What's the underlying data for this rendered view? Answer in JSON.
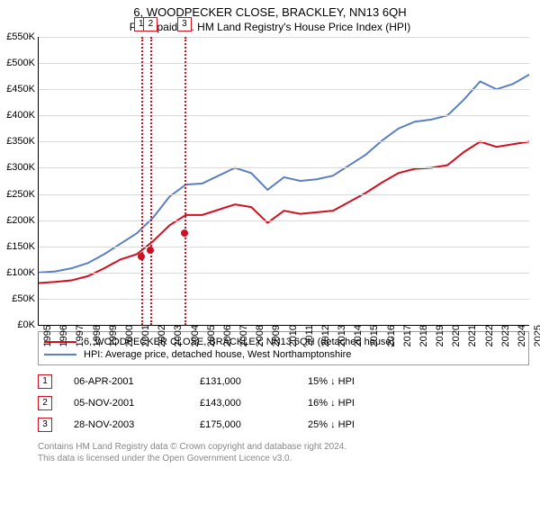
{
  "title": "6, WOODPECKER CLOSE, BRACKLEY, NN13 6QH",
  "subtitle": "Price paid vs. HM Land Registry's House Price Index (HPI)",
  "chart": {
    "type": "line",
    "background_color": "#ffffff",
    "grid_color": "#d9d9d9",
    "axis_color": "#000000",
    "ylabel_prefix": "£",
    "ylabel_suffix": "K",
    "ylim": [
      0,
      550
    ],
    "ytick_step": 50,
    "xlim": [
      1995,
      2025
    ],
    "xtick_step": 1,
    "label_fontsize": 11,
    "series": [
      {
        "id": "property",
        "label": "6, WOODPECKER CLOSE, BRACKLEY, NN13 6QH (detached house)",
        "color": "#cf1020",
        "line_width": 2,
        "points": [
          [
            1995,
            80
          ],
          [
            1996,
            82
          ],
          [
            1997,
            85
          ],
          [
            1998,
            93
          ],
          [
            1999,
            108
          ],
          [
            2000,
            125
          ],
          [
            2001,
            135
          ],
          [
            2002,
            160
          ],
          [
            2003,
            190
          ],
          [
            2004,
            210
          ],
          [
            2005,
            210
          ],
          [
            2006,
            220
          ],
          [
            2007,
            230
          ],
          [
            2008,
            225
          ],
          [
            2009,
            195
          ],
          [
            2010,
            218
          ],
          [
            2011,
            212
          ],
          [
            2012,
            215
          ],
          [
            2013,
            218
          ],
          [
            2014,
            235
          ],
          [
            2015,
            252
          ],
          [
            2016,
            272
          ],
          [
            2017,
            290
          ],
          [
            2018,
            298
          ],
          [
            2019,
            300
          ],
          [
            2020,
            305
          ],
          [
            2021,
            330
          ],
          [
            2022,
            350
          ],
          [
            2023,
            340
          ],
          [
            2024,
            345
          ],
          [
            2025,
            350
          ]
        ]
      },
      {
        "id": "hpi",
        "label": "HPI: Average price, detached house, West Northamptonshire",
        "color": "#5b7fbf",
        "line_width": 2,
        "points": [
          [
            1995,
            100
          ],
          [
            1996,
            102
          ],
          [
            1997,
            108
          ],
          [
            1998,
            118
          ],
          [
            1999,
            135
          ],
          [
            2000,
            155
          ],
          [
            2001,
            175
          ],
          [
            2002,
            205
          ],
          [
            2003,
            245
          ],
          [
            2004,
            268
          ],
          [
            2005,
            270
          ],
          [
            2006,
            285
          ],
          [
            2007,
            300
          ],
          [
            2008,
            290
          ],
          [
            2009,
            258
          ],
          [
            2010,
            282
          ],
          [
            2011,
            275
          ],
          [
            2012,
            278
          ],
          [
            2013,
            285
          ],
          [
            2014,
            305
          ],
          [
            2015,
            325
          ],
          [
            2016,
            352
          ],
          [
            2017,
            375
          ],
          [
            2018,
            388
          ],
          [
            2019,
            392
          ],
          [
            2020,
            400
          ],
          [
            2021,
            430
          ],
          [
            2022,
            465
          ],
          [
            2023,
            450
          ],
          [
            2024,
            460
          ],
          [
            2025,
            478
          ]
        ]
      }
    ],
    "event_markers": [
      {
        "n": "1",
        "x": 2001.26,
        "color": "#cf1020",
        "dot_y": 131
      },
      {
        "n": "2",
        "x": 2001.85,
        "color": "#cf1020",
        "dot_y": 143
      },
      {
        "n": "3",
        "x": 2003.91,
        "color": "#cf1020",
        "dot_y": 175
      }
    ],
    "marker_dot_color": "#cf1020"
  },
  "legend": [
    {
      "color": "#cf1020",
      "text": "6, WOODPECKER CLOSE, BRACKLEY, NN13 6QH (detached house)"
    },
    {
      "color": "#5b7fbf",
      "text": "HPI: Average price, detached house, West Northamptonshire"
    }
  ],
  "events": [
    {
      "n": "1",
      "color": "#cf1020",
      "date": "06-APR-2001",
      "price": "£131,000",
      "delta": "15% ↓ HPI"
    },
    {
      "n": "2",
      "color": "#cf1020",
      "date": "05-NOV-2001",
      "price": "£143,000",
      "delta": "16% ↓ HPI"
    },
    {
      "n": "3",
      "color": "#cf1020",
      "date": "28-NOV-2003",
      "price": "£175,000",
      "delta": "25% ↓ HPI"
    }
  ],
  "attribution": {
    "line1": "Contains HM Land Registry data © Crown copyright and database right 2024.",
    "line2": "This data is licensed under the Open Government Licence v3.0."
  }
}
